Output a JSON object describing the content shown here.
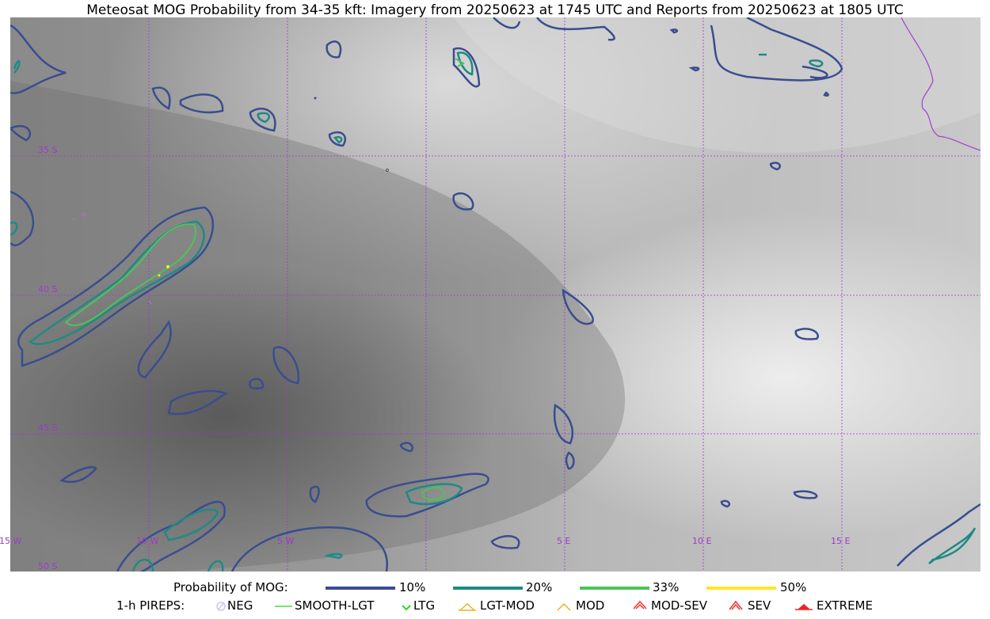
{
  "title": "Meteosat MOG Probability from 34-35 kft: Imagery from 20250623 at 1745 UTC and Reports from 20250623 at 1805 UTC",
  "map": {
    "lon_labels": [
      "15 W",
      "10 W",
      "5 W",
      "5 E",
      "10 E",
      "15 E"
    ],
    "lat_labels": [
      "35 S",
      "40 S",
      "45 S",
      "50 S"
    ],
    "gridline_color": "#9a3bcb",
    "coastline_color": "#a040d0"
  },
  "legend": {
    "probability_title": "Probability of MOG:",
    "probability_levels": [
      {
        "label": "10%",
        "color": "#3a4d8f"
      },
      {
        "label": "20%",
        "color": "#1f8a84"
      },
      {
        "label": "33%",
        "color": "#4cc35a"
      },
      {
        "label": "50%",
        "color": "#fde725"
      }
    ],
    "pireps_title": "1-h PIREPS:",
    "pireps": [
      {
        "label": "NEG",
        "icon": "neg-icon",
        "color": "#c8c8f0"
      },
      {
        "label": "SMOOTH-LGT",
        "icon": "smooth-lgt-icon",
        "color": "#44dd44"
      },
      {
        "label": "LTG",
        "icon": "ltg-icon",
        "color": "#22dd22"
      },
      {
        "label": "LGT-MOD",
        "icon": "lgt-mod-icon",
        "color": "#f0b020"
      },
      {
        "label": "MOD",
        "icon": "mod-icon",
        "color": "#f0b020"
      },
      {
        "label": "MOD-SEV",
        "icon": "mod-sev-icon",
        "color": "#ee3333"
      },
      {
        "label": "SEV",
        "icon": "sev-icon",
        "color": "#ee3333"
      },
      {
        "label": "EXTREME",
        "icon": "extreme-icon",
        "color": "#ee2222"
      }
    ]
  }
}
